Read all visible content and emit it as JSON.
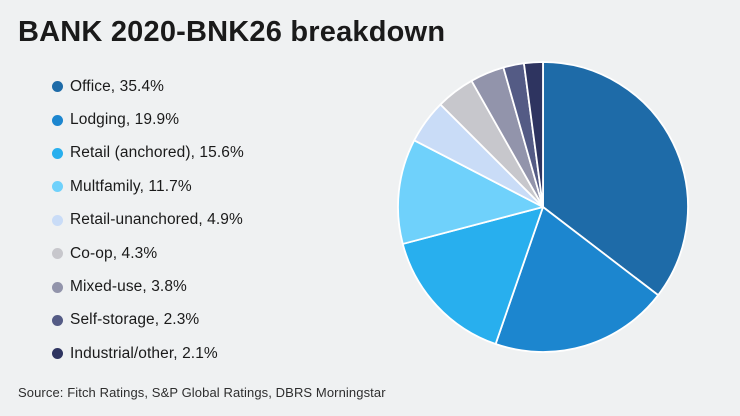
{
  "source_note": "Source: Fitch Ratings, S&P Global Ratings, DBRS Morningstar",
  "colors": {
    "background": "#EFF1F2",
    "title_text": "#1A1A1A",
    "legend_text": "#1A1A1A",
    "source_text": "#2E2E2E",
    "slice_border": "#FFFFFF"
  },
  "chart_data": {
    "type": "pie",
    "title": "BANK 2020-BNK26 breakdown",
    "start_angle_deg": 0,
    "direction": "clockwise",
    "legend_position": "left",
    "legend_label_format": "{label}, {value}%",
    "slices": [
      {
        "label": "Office",
        "value": 35.4,
        "color": "#1E6BA8"
      },
      {
        "label": "Lodging",
        "value": 19.9,
        "color": "#1C86CF"
      },
      {
        "label": "Retail (anchored)",
        "value": 15.6,
        "color": "#28AFEE"
      },
      {
        "label": "Multfamily",
        "value": 11.7,
        "color": "#6FD1FB"
      },
      {
        "label": "Retail-unanchored",
        "value": 4.9,
        "color": "#C9DCF7"
      },
      {
        "label": "Co-op",
        "value": 4.3,
        "color": "#C7C7CC"
      },
      {
        "label": "Mixed-use",
        "value": 3.8,
        "color": "#9294AB"
      },
      {
        "label": "Self-storage",
        "value": 2.3,
        "color": "#545B85"
      },
      {
        "label": "Industrial/other",
        "value": 2.1,
        "color": "#2E3460"
      }
    ]
  }
}
